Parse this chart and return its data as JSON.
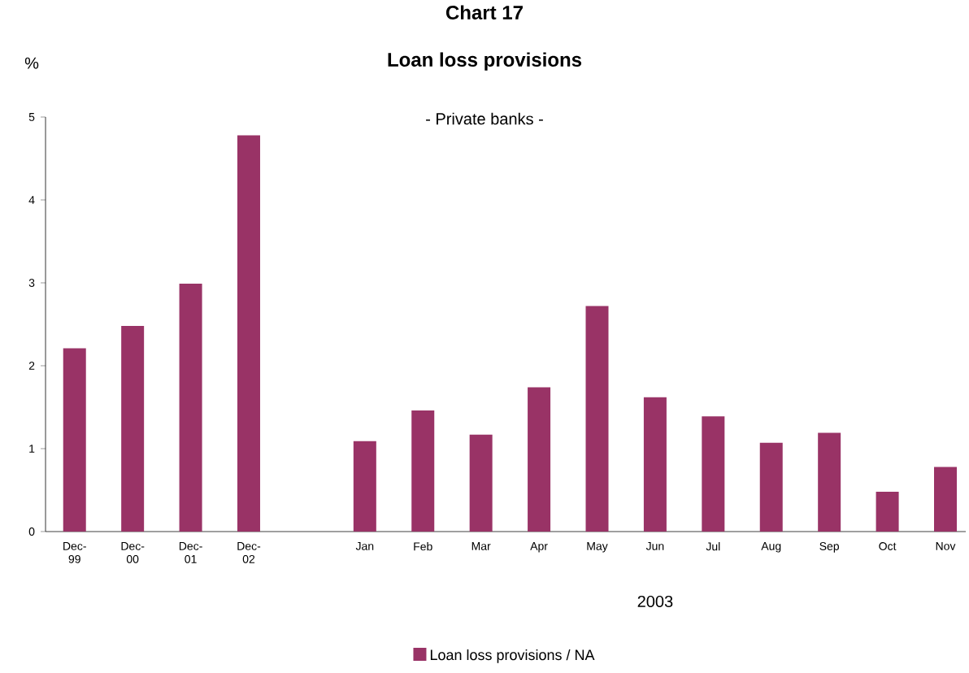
{
  "chart_data": {
    "type": "bar",
    "title": "Chart 17\nLoan loss provisions",
    "subtitle": "- Private banks -",
    "ylabel": "%",
    "categories": [
      "Dec-99",
      "Dec-00",
      "Dec-01",
      "Dec-02",
      null,
      "Jan",
      "Feb",
      "Mar",
      "Apr",
      "May",
      "Jun",
      "Jul",
      "Aug",
      "Sep",
      "Oct",
      "Nov"
    ],
    "series": [
      {
        "name": "Loan loss provisions / NA",
        "color": "#993366",
        "values": [
          2.21,
          2.48,
          2.99,
          4.78,
          null,
          1.09,
          1.46,
          1.17,
          1.74,
          2.72,
          1.62,
          1.39,
          1.07,
          1.19,
          0.48,
          0.78
        ]
      }
    ],
    "ylim": [
      0,
      5
    ],
    "yticks": [
      0,
      1,
      2,
      3,
      4,
      5
    ],
    "grid": false,
    "legend": "bottom",
    "annotations": [
      "2003"
    ]
  }
}
